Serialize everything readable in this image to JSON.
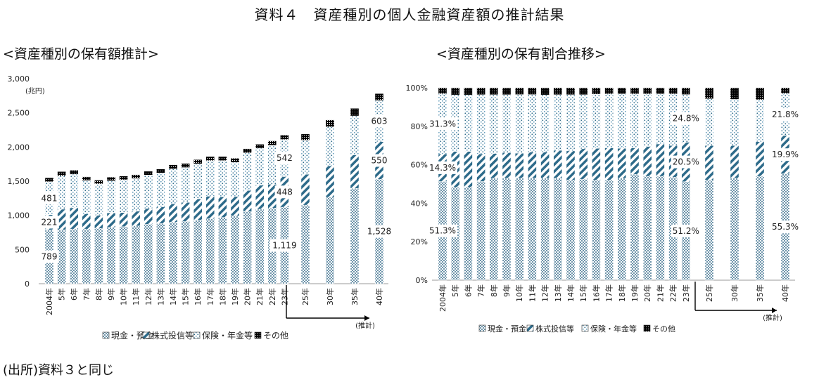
{
  "page": {
    "title": "資料４　資産種別の個人金融資産額の推計結果",
    "left_subtitle": "<資産種別の保有額推計>",
    "right_subtitle": "<資産種別の保有割合推移>",
    "source": "(出所)資料３と同じ"
  },
  "colors": {
    "cash": "#8aa6b8",
    "stocks": "#2e6b8a",
    "insurance": "#9cc6dc",
    "other": "#111111"
  },
  "chart_data": [
    {
      "type": "bar",
      "stacked": true,
      "title": "<資産種別の保有額推計>",
      "ylabel": "",
      "unit": "(兆円)",
      "ylim": [
        0,
        3000
      ],
      "yticks": [
        "0",
        "500",
        "1,000",
        "1,500",
        "2,000",
        "2,500",
        "3,000"
      ],
      "categories": [
        "2004年",
        "5年",
        "6年",
        "7年",
        "8年",
        "9年",
        "10年",
        "11年",
        "12年",
        "13年",
        "14年",
        "15年",
        "16年",
        "17年",
        "18年",
        "19年",
        "20年",
        "21年",
        "22年",
        "23年",
        "25年",
        "30年",
        "35年",
        "40年"
      ],
      "projection_label": "(推計)",
      "series": [
        {
          "name": "現金・預金",
          "values": [
            789,
            790,
            800,
            800,
            810,
            825,
            835,
            845,
            870,
            880,
            900,
            910,
            930,
            950,
            970,
            995,
            1055,
            1090,
            1105,
            1119,
            1150,
            1265,
            1395,
            1528
          ]
        },
        {
          "name": "株式投信等",
          "values": [
            221,
            300,
            310,
            220,
            190,
            210,
            205,
            215,
            230,
            245,
            270,
            280,
            310,
            330,
            300,
            280,
            310,
            350,
            350,
            448,
            450,
            460,
            490,
            550
          ]
        },
        {
          "name": "保険・年金等",
          "values": [
            481,
            490,
            490,
            490,
            460,
            470,
            480,
            480,
            490,
            495,
            510,
            510,
            515,
            520,
            530,
            500,
            550,
            540,
            570,
            542,
            500,
            570,
            570,
            603
          ]
        },
        {
          "name": "その他",
          "values": [
            59,
            60,
            60,
            55,
            55,
            55,
            55,
            55,
            55,
            58,
            60,
            60,
            60,
            60,
            60,
            60,
            60,
            60,
            65,
            65,
            90,
            100,
            110,
            100
          ]
        }
      ],
      "data_labels": [
        {
          "series": 0,
          "index": 0,
          "text": "789"
        },
        {
          "series": 1,
          "index": 0,
          "text": "221"
        },
        {
          "series": 2,
          "index": 0,
          "text": "481"
        },
        {
          "series": 0,
          "index": 19,
          "text": "1,119"
        },
        {
          "series": 1,
          "index": 19,
          "text": "448"
        },
        {
          "series": 2,
          "index": 19,
          "text": "542"
        },
        {
          "series": 0,
          "index": 23,
          "text": "1,528"
        },
        {
          "series": 1,
          "index": 23,
          "text": "550"
        },
        {
          "series": 2,
          "index": 23,
          "text": "603"
        }
      ],
      "legend": [
        "現金・預金",
        "株式投信等",
        "保険・年金等",
        "その他"
      ],
      "legend_position": "bottom"
    },
    {
      "type": "bar",
      "stacked": true,
      "percent": true,
      "title": "<資産種別の保有割合推移>",
      "ylim": [
        0,
        100
      ],
      "yticks": [
        "0%",
        "20%",
        "40%",
        "60%",
        "80%",
        "100%"
      ],
      "categories": [
        "2004年",
        "5年",
        "6年",
        "7年",
        "8年",
        "9年",
        "10年",
        "11年",
        "12年",
        "13年",
        "14年",
        "15年",
        "16年",
        "17年",
        "18年",
        "19年",
        "20年",
        "21年",
        "22年",
        "23年",
        "25年",
        "30年",
        "35年",
        "40年"
      ],
      "projection_label": "(推計)",
      "series": [
        {
          "name": "現金・預金",
          "values": [
            51.3,
            48.3,
            48.3,
            51.3,
            53.0,
            53.0,
            53.0,
            53.0,
            53.0,
            53.0,
            52.0,
            52.5,
            52.0,
            52.0,
            53.0,
            55.0,
            54.0,
            54.0,
            53.5,
            51.2,
            52.0,
            53.0,
            54.0,
            55.3
          ]
        },
        {
          "name": "株式投信等",
          "values": [
            14.3,
            18.6,
            18.6,
            14.3,
            12.8,
            13.3,
            13.0,
            13.5,
            13.5,
            14.5,
            15.2,
            15.8,
            16.5,
            16.8,
            15.5,
            13.8,
            15.5,
            16.8,
            16.5,
            20.5,
            18.0,
            17.0,
            18.0,
            19.9
          ]
        },
        {
          "name": "保険・年金等",
          "values": [
            31.3,
            29.4,
            29.4,
            30.8,
            30.6,
            30.1,
            30.5,
            30.0,
            29.8,
            28.9,
            29.2,
            28.1,
            28.2,
            28.0,
            28.3,
            28.0,
            27.3,
            26.0,
            26.8,
            24.8,
            24.3,
            24.0,
            21.8,
            21.8
          ]
        },
        {
          "name": "その他",
          "values": [
            3.1,
            3.7,
            3.7,
            3.6,
            3.6,
            3.6,
            3.5,
            3.5,
            3.7,
            3.6,
            3.6,
            3.6,
            3.3,
            3.2,
            3.2,
            3.2,
            3.2,
            3.2,
            3.2,
            3.5,
            5.7,
            6.0,
            6.2,
            3.0
          ]
        }
      ],
      "data_labels": [
        {
          "series": 0,
          "index": 0,
          "text": "51.3%"
        },
        {
          "series": 1,
          "index": 0,
          "text": "14.3%"
        },
        {
          "series": 2,
          "index": 0,
          "text": "31.3%"
        },
        {
          "series": 0,
          "index": 19,
          "text": "51.2%"
        },
        {
          "series": 1,
          "index": 19,
          "text": "20.5%"
        },
        {
          "series": 2,
          "index": 19,
          "text": "24.8%"
        },
        {
          "series": 0,
          "index": 23,
          "text": "55.3%"
        },
        {
          "series": 1,
          "index": 23,
          "text": "19.9%"
        },
        {
          "series": 2,
          "index": 23,
          "text": "21.8%"
        }
      ],
      "legend": [
        "現金・預金",
        "株式投信等",
        "保険・年金等",
        "その他"
      ],
      "legend_position": "bottom"
    }
  ]
}
